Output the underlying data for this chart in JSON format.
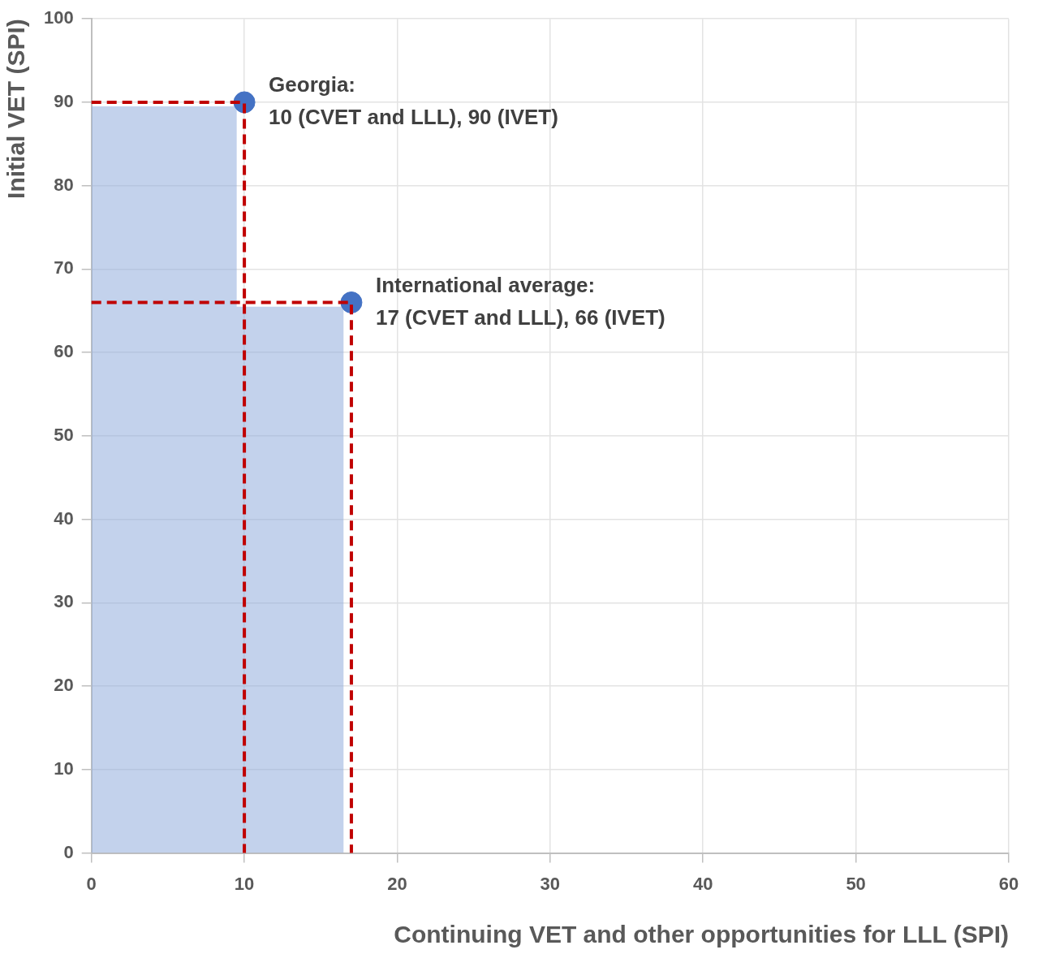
{
  "chart_data": {
    "type": "scatter",
    "xlabel": "Continuing VET and other opportunities for LLL (SPI)",
    "ylabel": "Initial VET (SPI)",
    "xlim": [
      0,
      60
    ],
    "xticks": [
      0,
      10,
      20,
      30,
      40,
      50,
      60
    ],
    "ylim": [
      0,
      100
    ],
    "yticks": [
      0,
      10,
      20,
      30,
      40,
      50,
      60,
      70,
      80,
      90,
      100
    ],
    "grid": true,
    "legend": false,
    "marker": "circle",
    "series": [
      {
        "type": "area",
        "color": "#8faadc",
        "marker": "none",
        "x": [
          0,
          9.5,
          9.5,
          16.5,
          16.5
        ],
        "values": [
          89.5,
          89.5,
          65.5,
          65.5,
          0
        ]
      },
      {
        "type": "line",
        "color": "#c00000",
        "line_style": "dashed",
        "marker": "none",
        "x": [
          0,
          10,
          10
        ],
        "values": [
          90,
          90,
          0
        ]
      },
      {
        "type": "line",
        "color": "#c00000",
        "line_style": "dashed",
        "marker": "none",
        "x": [
          0,
          17,
          17
        ],
        "values": [
          66,
          66,
          0
        ]
      },
      {
        "color": "#4472c4",
        "x": [
          10,
          17
        ],
        "values": [
          90,
          66
        ]
      }
    ],
    "annotations": [
      {
        "text": "Georgia:\n10 (CVET and LLL), 90 (IVET)",
        "x": 10,
        "y": 90
      },
      {
        "text": "International average:\n17 (CVET and LLL), 66 (IVET)",
        "x": 17,
        "y": 66
      }
    ]
  }
}
